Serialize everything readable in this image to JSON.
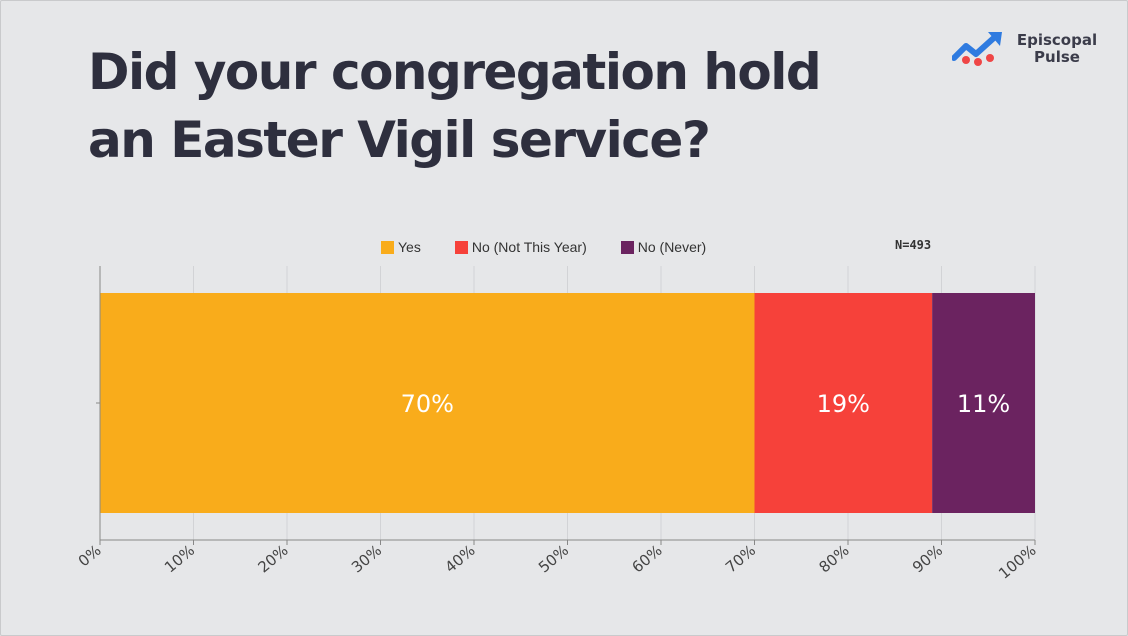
{
  "title": "Did your congregation hold an Easter Vigil service?",
  "logo": {
    "line1": "Episcopal",
    "line2": "Pulse",
    "icon": "trend-arrow-icon",
    "colors": [
      "#2f7be0",
      "#ef4646"
    ]
  },
  "n_label": "N=493",
  "chart_data": {
    "type": "bar",
    "orientation": "horizontal",
    "stacked": true,
    "categories": [
      ""
    ],
    "series": [
      {
        "name": "Yes",
        "values": [
          70
        ],
        "label": "70%",
        "color": "#f9ac1b"
      },
      {
        "name": "No (Not This Year)",
        "values": [
          19
        ],
        "label": "19%",
        "color": "#f6413a"
      },
      {
        "name": "No (Never)",
        "values": [
          11
        ],
        "label": "11%",
        "color": "#6b2360"
      }
    ],
    "xlim": [
      0,
      100
    ],
    "xticks": [
      "0%",
      "10%",
      "20%",
      "30%",
      "40%",
      "50%",
      "60%",
      "70%",
      "80%",
      "90%",
      "100%"
    ],
    "grid": "vertical",
    "legend": "top-center"
  }
}
